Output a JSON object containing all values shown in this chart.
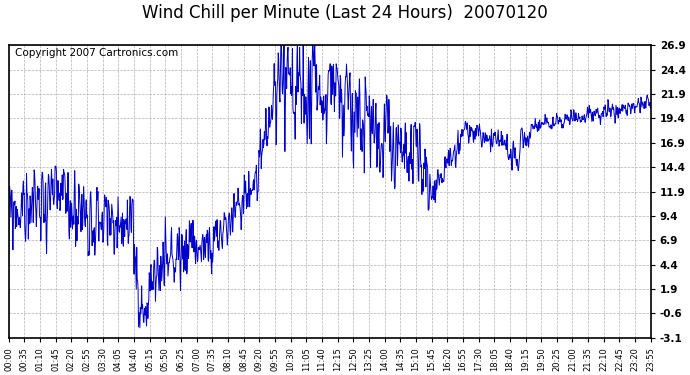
{
  "title": "Wind Chill per Minute (Last 24 Hours)  20070120",
  "copyright": "Copyright 2007 Cartronics.com",
  "line_color": "#0000CC",
  "background_color": "#FFFFFF",
  "plot_bg_color": "#FFFFFF",
  "grid_color": "#AAAAAA",
  "yticks": [
    26.9,
    24.4,
    21.9,
    19.4,
    16.9,
    14.4,
    11.9,
    9.4,
    6.9,
    4.4,
    1.9,
    -0.6,
    -3.1
  ],
  "ylim": [
    -3.1,
    26.9
  ],
  "xtick_labels": [
    "00:00",
    "00:35",
    "01:10",
    "01:45",
    "02:20",
    "02:55",
    "03:30",
    "04:05",
    "04:40",
    "05:15",
    "05:50",
    "06:25",
    "07:00",
    "07:35",
    "08:10",
    "08:45",
    "09:20",
    "09:55",
    "10:30",
    "11:05",
    "11:40",
    "12:15",
    "12:50",
    "13:25",
    "14:00",
    "14:35",
    "15:10",
    "15:45",
    "16:20",
    "16:55",
    "17:30",
    "18:05",
    "18:40",
    "19:15",
    "19:50",
    "20:25",
    "21:00",
    "21:35",
    "22:10",
    "22:45",
    "23:20",
    "23:55"
  ],
  "title_fontsize": 12,
  "copyright_fontsize": 7.5,
  "tick_fontsize": 7.5,
  "xtick_fontsize": 6.0
}
